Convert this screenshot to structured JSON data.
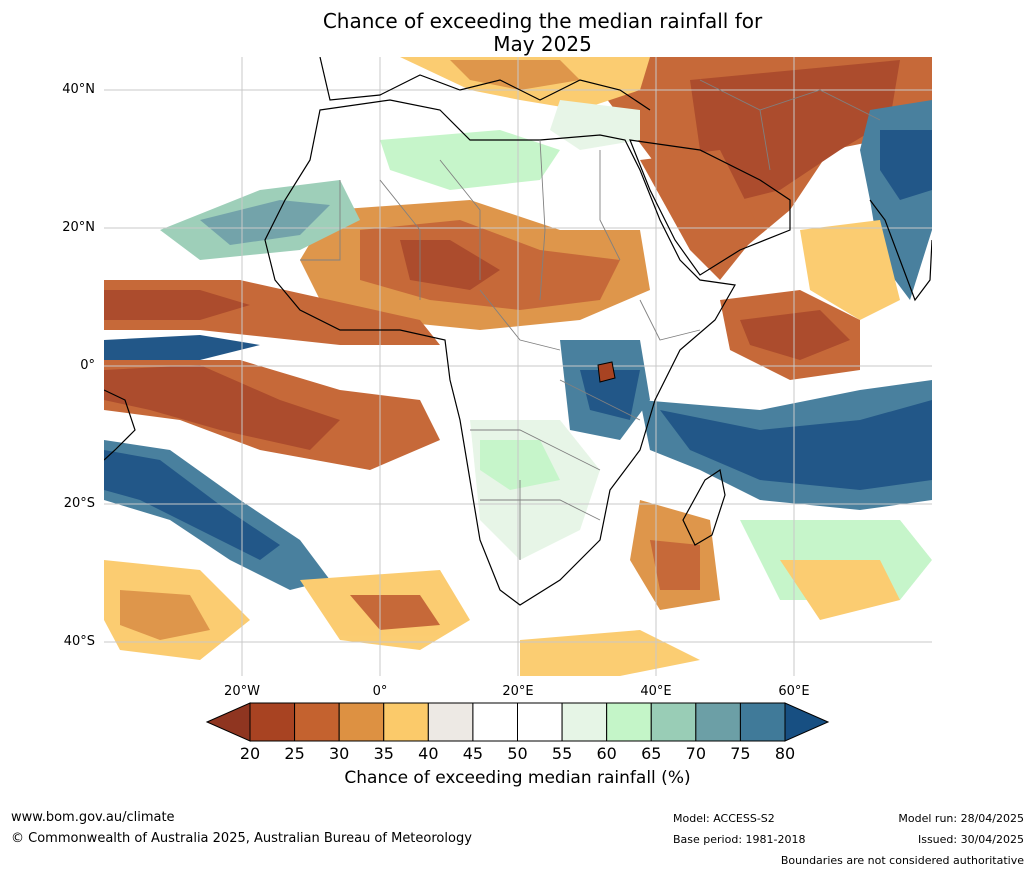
{
  "title": {
    "line1": "Chance of exceeding the median rainfall for",
    "line2": "May 2025"
  },
  "map": {
    "lat_labels": [
      "40°N",
      "20°N",
      "0°",
      "20°S",
      "40°S"
    ],
    "lon_labels": [
      "20°W",
      "0°",
      "20°E",
      "40°E",
      "60°E"
    ],
    "ocean_color": "#ffffff",
    "coastline_color": "#000000",
    "border_color": "#808080",
    "grid_color": "#c8c8c8"
  },
  "colorbar": {
    "ticks": [
      "20",
      "25",
      "30",
      "35",
      "40",
      "45",
      "50",
      "55",
      "60",
      "65",
      "70",
      "75",
      "80"
    ],
    "colors": [
      "#a84322",
      "#c4622f",
      "#dd9142",
      "#fbca6a",
      "#ede9e4",
      "#ffffff",
      "#ffffff",
      "#e6f5e6",
      "#c4f5c8",
      "#99cdb6",
      "#6c9fa6",
      "#407a99"
    ],
    "under_color": "#8f3520",
    "over_color": "#174f82",
    "label": "Chance of exceeding median rainfall (%)"
  },
  "footer": {
    "url": "www.bom.gov.au/climate",
    "copyright": "© Commonwealth of Australia 2025, Australian Bureau of Meteorology",
    "model": "Model: ACCESS-S2",
    "base_period": "Base period: 1981-2018",
    "model_run": "Model run: 28/04/2025",
    "issued": "Issued: 30/04/2025",
    "disclaimer": "Boundaries are not considered authoritative"
  }
}
